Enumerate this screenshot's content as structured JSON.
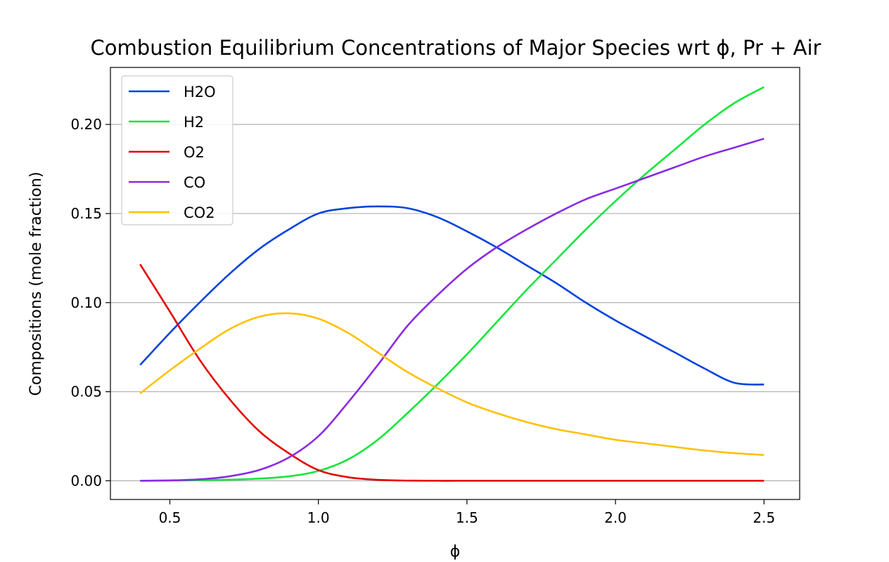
{
  "chart_data": {
    "type": "line",
    "title": "Combustion Equilibrium Concentrations of Major Species wrt ϕ, Pr + Air",
    "xlabel": "ϕ",
    "ylabel": "Compositions (mole fraction)",
    "xlim": [
      0.3,
      2.62
    ],
    "ylim": [
      -0.0105,
      0.232
    ],
    "xticks": [
      0.5,
      1.0,
      1.5,
      2.0,
      2.5
    ],
    "xtick_labels": [
      "0.5",
      "1.0",
      "1.5",
      "2.0",
      "2.5"
    ],
    "yticks": [
      0.0,
      0.05,
      0.1,
      0.15,
      0.2
    ],
    "ytick_labels": [
      "0.00",
      "0.05",
      "0.10",
      "0.15",
      "0.20"
    ],
    "grid": "horizontal",
    "legend_position": "top-left",
    "x": [
      0.4,
      0.5,
      0.6,
      0.7,
      0.8,
      0.9,
      1.0,
      1.1,
      1.2,
      1.3,
      1.4,
      1.5,
      1.6,
      1.7,
      1.8,
      1.9,
      2.0,
      2.1,
      2.2,
      2.3,
      2.4,
      2.5
    ],
    "series": [
      {
        "name": "H2O",
        "color": "#0343df",
        "values": [
          0.065,
          0.083,
          0.1,
          0.116,
          0.13,
          0.141,
          0.15,
          0.153,
          0.154,
          0.153,
          0.148,
          0.14,
          0.131,
          0.121,
          0.111,
          0.1,
          0.09,
          0.081,
          0.072,
          0.063,
          0.055,
          0.054
        ]
      },
      {
        "name": "H2",
        "color": "#15e63c",
        "values": [
          0.0,
          0.0001,
          0.0003,
          0.0006,
          0.0012,
          0.0025,
          0.0055,
          0.012,
          0.023,
          0.038,
          0.054,
          0.071,
          0.089,
          0.107,
          0.124,
          0.141,
          0.157,
          0.172,
          0.186,
          0.2,
          0.212,
          0.221
        ]
      },
      {
        "name": "O2",
        "color": "#e50000",
        "values": [
          0.1215,
          0.095,
          0.068,
          0.046,
          0.028,
          0.0155,
          0.006,
          0.002,
          0.0005,
          0.0001,
          0.0,
          0.0,
          0.0,
          0.0,
          0.0,
          0.0,
          0.0,
          0.0,
          0.0,
          0.0,
          0.0,
          0.0
        ]
      },
      {
        "name": "CO",
        "color": "#8a2be2",
        "values": [
          0.0,
          0.0002,
          0.0008,
          0.0025,
          0.006,
          0.013,
          0.025,
          0.044,
          0.065,
          0.087,
          0.104,
          0.119,
          0.131,
          0.141,
          0.15,
          0.158,
          0.164,
          0.17,
          0.176,
          0.182,
          0.187,
          0.192
        ]
      },
      {
        "name": "CO2",
        "color": "#ffc107",
        "values": [
          0.049,
          0.062,
          0.074,
          0.085,
          0.092,
          0.094,
          0.091,
          0.083,
          0.072,
          0.061,
          0.052,
          0.044,
          0.038,
          0.033,
          0.029,
          0.026,
          0.023,
          0.021,
          0.019,
          0.017,
          0.0155,
          0.0145
        ]
      }
    ]
  }
}
